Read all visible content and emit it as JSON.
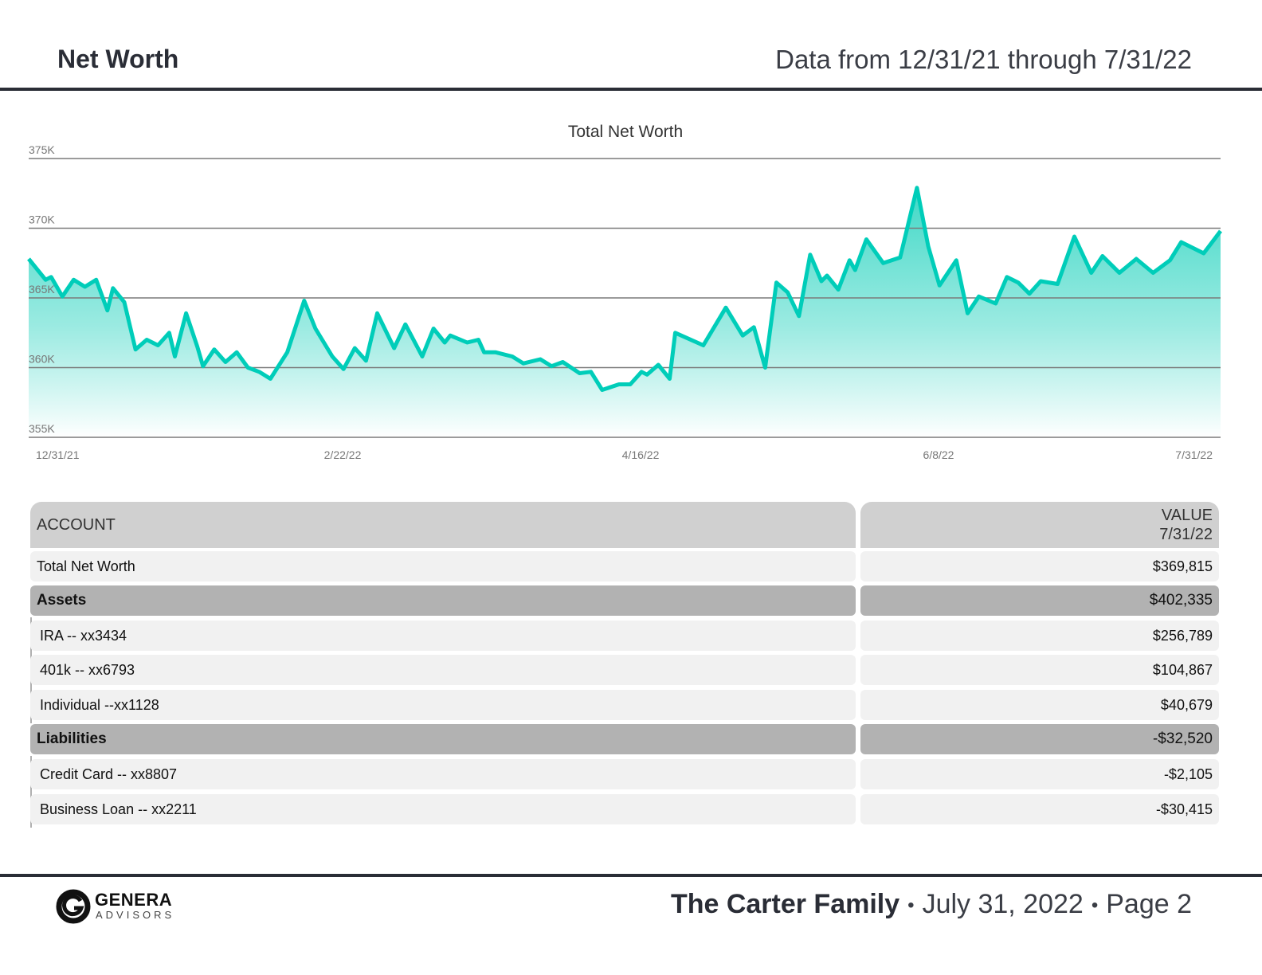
{
  "header": {
    "title": "Net Worth",
    "date_range": "Data from 12/31/21 through 7/31/22"
  },
  "colors": {
    "line": "#00cdb9",
    "fill_top": "#3ed8c6",
    "grid": "#808080",
    "rule": "#2a2d36"
  },
  "chart_data": {
    "type": "area",
    "title": "Total Net Worth",
    "xlabel": "",
    "ylabel": "",
    "ylim": [
      355,
      375
    ],
    "y_unit": "K",
    "yticks": [
      "355K",
      "360K",
      "365K",
      "370K",
      "375K"
    ],
    "ytick_values": [
      355,
      360,
      365,
      370,
      375
    ],
    "xlim_days": [
      0,
      212
    ],
    "xticks": [
      {
        "label": "12/31/21",
        "day": 0
      },
      {
        "label": "2/22/22",
        "day": 53
      },
      {
        "label": "4/16/22",
        "day": 106
      },
      {
        "label": "6/8/22",
        "day": 159
      },
      {
        "label": "7/31/22",
        "day": 212
      }
    ],
    "grid": true,
    "points": [
      [
        0,
        367.8
      ],
      [
        3,
        366.3
      ],
      [
        4,
        366.5
      ],
      [
        6,
        365.1
      ],
      [
        8,
        366.3
      ],
      [
        10,
        365.8
      ],
      [
        12,
        366.3
      ],
      [
        14,
        364.1
      ],
      [
        15,
        365.7
      ],
      [
        17,
        364.7
      ],
      [
        19,
        361.3
      ],
      [
        21,
        362.0
      ],
      [
        23,
        361.6
      ],
      [
        25,
        362.5
      ],
      [
        26,
        360.8
      ],
      [
        28,
        363.9
      ],
      [
        30,
        361.5
      ],
      [
        31,
        360.1
      ],
      [
        33,
        361.3
      ],
      [
        35,
        360.4
      ],
      [
        37,
        361.1
      ],
      [
        39,
        360.0
      ],
      [
        41,
        359.7
      ],
      [
        43,
        359.2
      ],
      [
        46,
        361.1
      ],
      [
        49,
        364.8
      ],
      [
        51,
        362.8
      ],
      [
        54,
        360.8
      ],
      [
        56,
        359.9
      ],
      [
        58,
        361.4
      ],
      [
        60,
        360.5
      ],
      [
        62,
        363.9
      ],
      [
        65,
        361.4
      ],
      [
        67,
        363.1
      ],
      [
        70,
        360.8
      ],
      [
        72,
        362.8
      ],
      [
        74,
        361.8
      ],
      [
        75,
        362.3
      ],
      [
        78,
        361.8
      ],
      [
        80,
        362.0
      ],
      [
        81,
        361.1
      ],
      [
        83,
        361.1
      ],
      [
        86,
        360.8
      ],
      [
        88,
        360.3
      ],
      [
        91,
        360.6
      ],
      [
        93,
        360.1
      ],
      [
        95,
        360.4
      ],
      [
        98,
        359.6
      ],
      [
        100,
        359.7
      ],
      [
        102,
        358.4
      ],
      [
        105,
        358.8
      ],
      [
        107,
        358.8
      ],
      [
        109,
        359.7
      ],
      [
        110,
        359.5
      ],
      [
        112,
        360.2
      ],
      [
        114,
        359.2
      ],
      [
        115,
        362.5
      ],
      [
        120,
        361.6
      ],
      [
        124,
        364.3
      ],
      [
        127,
        362.3
      ],
      [
        129,
        362.9
      ],
      [
        131,
        360.0
      ],
      [
        133,
        366.1
      ],
      [
        135,
        365.4
      ],
      [
        137,
        363.7
      ],
      [
        139,
        368.1
      ],
      [
        141,
        366.2
      ],
      [
        142,
        366.6
      ],
      [
        144,
        365.6
      ],
      [
        146,
        367.7
      ],
      [
        147,
        367.0
      ],
      [
        149,
        369.2
      ],
      [
        152,
        367.5
      ],
      [
        155,
        367.9
      ],
      [
        158,
        372.9
      ],
      [
        160,
        368.7
      ],
      [
        162,
        365.9
      ],
      [
        165,
        367.7
      ],
      [
        167,
        363.9
      ],
      [
        169,
        365.1
      ],
      [
        172,
        364.6
      ],
      [
        174,
        366.5
      ],
      [
        176,
        366.1
      ],
      [
        178,
        365.3
      ],
      [
        180,
        366.2
      ],
      [
        183,
        366.0
      ],
      [
        186,
        369.4
      ],
      [
        189,
        366.8
      ],
      [
        191,
        368.0
      ],
      [
        194,
        366.8
      ],
      [
        197,
        367.8
      ],
      [
        200,
        366.8
      ],
      [
        203,
        367.7
      ],
      [
        205,
        369.0
      ],
      [
        209,
        368.2
      ],
      [
        212,
        369.8
      ]
    ]
  },
  "table": {
    "col_account": "ACCOUNT",
    "col_value": "VALUE",
    "col_value_date": "7/31/22",
    "rows": [
      {
        "kind": "plain",
        "label": "Total Net Worth",
        "value": "$369,815"
      },
      {
        "kind": "group",
        "label": "Assets",
        "value": "$402,335"
      },
      {
        "kind": "child",
        "label": "IRA -- xx3434",
        "value": "$256,789"
      },
      {
        "kind": "child",
        "label": "401k -- xx6793",
        "value": "$104,867"
      },
      {
        "kind": "child",
        "label": "Individual --xx1128",
        "value": "$40,679"
      },
      {
        "kind": "group",
        "label": "Liabilities",
        "value": "-$32,520"
      },
      {
        "kind": "child",
        "label": "Credit Card -- xx8807",
        "value": "-$2,105"
      },
      {
        "kind": "child",
        "label": "Business Loan -- xx2211",
        "value": "-$30,415"
      }
    ]
  },
  "footer": {
    "logo_name": "GENERA",
    "logo_sub": "ADVISORS",
    "family": "The Carter Family",
    "separator": "•",
    "date": "July 31, 2022",
    "page": "Page 2"
  }
}
